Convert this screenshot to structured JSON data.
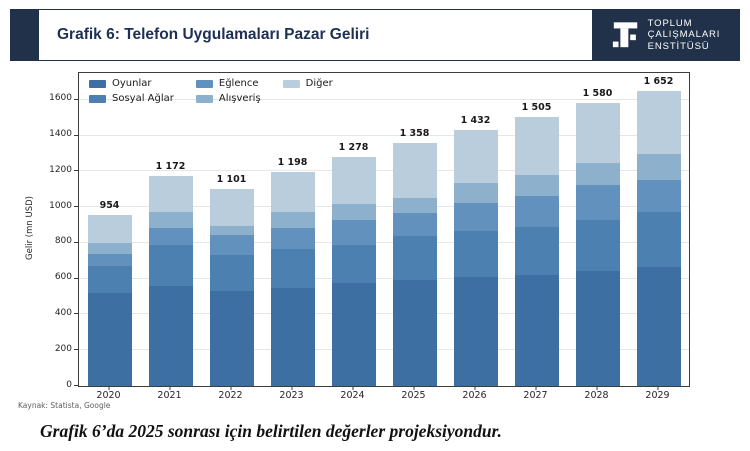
{
  "header": {
    "title": "Grafik 6: Telefon Uygulamaları Pazar Geliri",
    "logo": {
      "lines": [
        "TOPLUM",
        "ÇALIŞMALARI",
        "ENSTİTÜSÜ"
      ]
    }
  },
  "chart_data": {
    "type": "bar",
    "stacked": true,
    "title": "",
    "xlabel": "",
    "ylabel": "Gelir (mn USD)",
    "ylim": [
      0,
      1750
    ],
    "yticks": [
      0,
      200,
      400,
      600,
      800,
      1000,
      1200,
      1400,
      1600
    ],
    "grid": true,
    "legend_position": "upper-left",
    "categories": [
      "2020",
      "2021",
      "2022",
      "2023",
      "2024",
      "2025",
      "2026",
      "2027",
      "2028",
      "2029"
    ],
    "totals": [
      954,
      1172,
      1101,
      1198,
      1278,
      1358,
      1432,
      1505,
      1580,
      1652
    ],
    "total_labels": [
      "954",
      "1 172",
      "1 101",
      "1 198",
      "1 278",
      "1 358",
      "1 432",
      "1 505",
      "1 580",
      "1 652"
    ],
    "series": [
      {
        "name": "Oyunlar",
        "color": "#3d6fa3",
        "values": [
          520,
          557,
          529,
          548,
          576,
          590,
          609,
          622,
          641,
          665
        ]
      },
      {
        "name": "Sosyal Ağlar",
        "color": "#4c80b0",
        "values": [
          150,
          230,
          205,
          219,
          214,
          250,
          260,
          268,
          288,
          310
        ]
      },
      {
        "name": "Eğlence",
        "color": "#6191bc",
        "values": [
          70,
          95,
          110,
          115,
          139,
          126,
          153,
          172,
          195,
          177
        ]
      },
      {
        "name": "Alışveriş",
        "color": "#8db1cd",
        "values": [
          60,
          90,
          50,
          93,
          87,
          88,
          115,
          118,
          124,
          148
        ]
      },
      {
        "name": "Diğer",
        "color": "#b9cddc",
        "values": [
          154,
          200,
          207,
          223,
          262,
          304,
          295,
          325,
          332,
          352
        ]
      }
    ]
  },
  "footer": {
    "source": "Kaynak: Statista, Google",
    "caption": "Grafik 6’da 2025 sonrası için belirtilen değerler projeksiyondur."
  },
  "colors": {
    "header_navy": "#203149",
    "spine": "#3c3c3c",
    "grid": "#e6e6e6",
    "label_text": "#1a1a1a"
  }
}
